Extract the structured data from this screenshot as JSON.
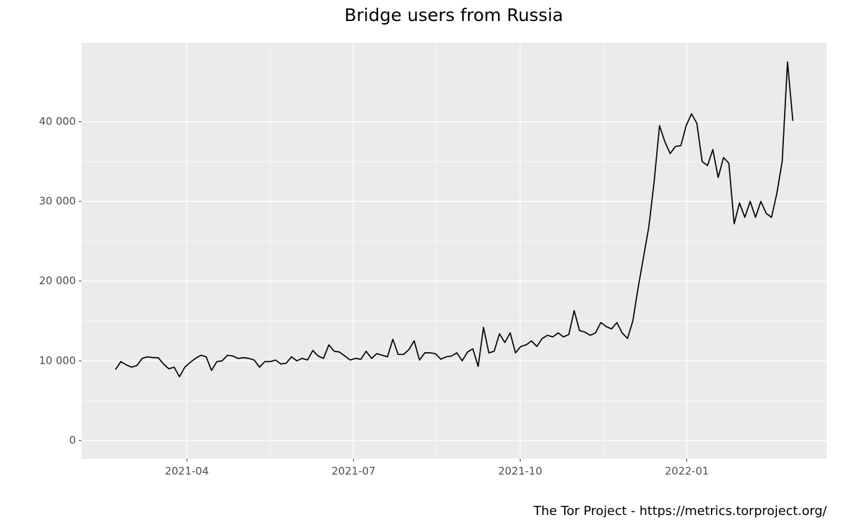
{
  "chart_data": {
    "type": "line",
    "title": "Bridge users from Russia",
    "caption": "The Tor Project - https://metrics.torproject.org/",
    "x": [
      2021.143,
      2021.151,
      2021.159,
      2021.167,
      2021.175,
      2021.183,
      2021.191,
      2021.199,
      2021.207,
      2021.215,
      2021.223,
      2021.231,
      2021.239,
      2021.247,
      2021.255,
      2021.263,
      2021.271,
      2021.279,
      2021.287,
      2021.295,
      2021.303,
      2021.311,
      2021.319,
      2021.327,
      2021.335,
      2021.343,
      2021.351,
      2021.359,
      2021.367,
      2021.375,
      2021.383,
      2021.391,
      2021.399,
      2021.407,
      2021.415,
      2021.423,
      2021.431,
      2021.439,
      2021.447,
      2021.455,
      2021.463,
      2021.471,
      2021.479,
      2021.487,
      2021.495,
      2021.503,
      2021.511,
      2021.519,
      2021.527,
      2021.535,
      2021.543,
      2021.551,
      2021.559,
      2021.567,
      2021.575,
      2021.583,
      2021.591,
      2021.599,
      2021.607,
      2021.615,
      2021.623,
      2021.631,
      2021.639,
      2021.647,
      2021.655,
      2021.663,
      2021.671,
      2021.679,
      2021.687,
      2021.695,
      2021.703,
      2021.711,
      2021.719,
      2021.727,
      2021.735,
      2021.743,
      2021.751,
      2021.759,
      2021.767,
      2021.775,
      2021.783,
      2021.791,
      2021.799,
      2021.807,
      2021.815,
      2021.823,
      2021.831,
      2021.839,
      2021.847,
      2021.855,
      2021.863,
      2021.871,
      2021.879,
      2021.887,
      2021.895,
      2021.903,
      2021.911,
      2021.919,
      2021.927,
      2021.935,
      2021.943,
      2021.951,
      2021.959,
      2021.967,
      2021.975,
      2021.983,
      2021.991,
      2021.999,
      2022.007,
      2022.015,
      2022.023,
      2022.031,
      2022.039,
      2022.047,
      2022.055,
      2022.063,
      2022.071,
      2022.079,
      2022.087,
      2022.095,
      2022.103,
      2022.111,
      2022.119,
      2022.127,
      2022.135,
      2022.143,
      2022.151,
      2022.159
    ],
    "series": [
      {
        "color": "#000000",
        "values": [
          8900,
          9900,
          9500,
          9200,
          9400,
          10300,
          10500,
          10400,
          10400,
          9600,
          9000,
          9200,
          8000,
          9200,
          9800,
          10300,
          10700,
          10500,
          8800,
          9900,
          10000,
          10700,
          10600,
          10300,
          10400,
          10300,
          10100,
          9200,
          9900,
          9900,
          10100,
          9600,
          9700,
          10500,
          10000,
          10300,
          10100,
          11300,
          10600,
          10300,
          12000,
          11200,
          11100,
          10600,
          10100,
          10300,
          10200,
          11200,
          10300,
          10900,
          10700,
          10500,
          12700,
          10800,
          10800,
          11400,
          12500,
          10100,
          11000,
          11000,
          10900,
          10200,
          10500,
          10600,
          11000,
          10000,
          11100,
          11500,
          9300,
          14200,
          11000,
          11200,
          13400,
          12300,
          13500,
          11000,
          11800,
          12000,
          12500,
          11800,
          12800,
          13200,
          13000,
          13500,
          13000,
          13300,
          16300,
          13800,
          13600,
          13200,
          13500,
          14800,
          14300,
          14000,
          14800,
          13500,
          12800,
          15000,
          19200,
          23000,
          26800,
          32500,
          39500,
          37500,
          36000,
          36900,
          37000,
          39500,
          41000,
          39800,
          35000,
          34500,
          36500,
          33000,
          35500,
          34800,
          27200,
          29800,
          28000,
          30000,
          28000,
          30000,
          28500,
          28000,
          31000,
          35000,
          47500,
          40100
        ]
      }
    ],
    "xlim": [
      2021.092,
      2022.21
    ],
    "xticks": [
      {
        "value": 2021.25,
        "label": "2021-04"
      },
      {
        "value": 2021.5,
        "label": "2021-07"
      },
      {
        "value": 2021.75,
        "label": "2021-10"
      },
      {
        "value": 2022.0,
        "label": "2022-01"
      }
    ],
    "ylim": [
      -2300,
      49900
    ],
    "yticks": [
      0,
      {
        "value": 10000,
        "label": "10 000"
      },
      {
        "value": 20000,
        "label": "20 000"
      },
      {
        "value": 30000,
        "label": "30 000"
      },
      {
        "value": 40000,
        "label": "40 000"
      }
    ],
    "grid": true
  }
}
